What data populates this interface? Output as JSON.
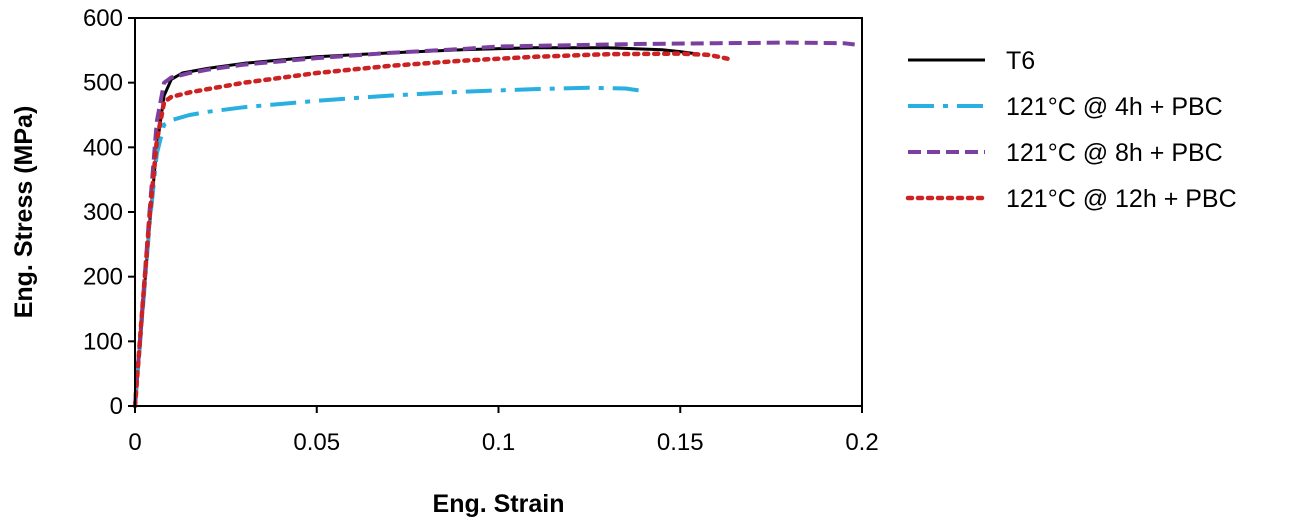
{
  "chart_data": {
    "type": "line",
    "title": "",
    "xlabel": "Eng. Strain",
    "ylabel": "Eng. Stress (MPa)",
    "xlim": [
      0,
      0.2
    ],
    "ylim": [
      0,
      600
    ],
    "x_ticks": [
      0,
      0.05,
      0.1,
      0.15,
      0.2
    ],
    "x_tick_labels": [
      "0",
      "0.05",
      "0.1",
      "0.15",
      "0.2"
    ],
    "y_ticks": [
      0,
      100,
      200,
      300,
      400,
      500,
      600
    ],
    "y_tick_labels": [
      "0",
      "100",
      "200",
      "300",
      "400",
      "500",
      "600"
    ],
    "grid": false,
    "legend_position": "right",
    "series": [
      {
        "name": "T6",
        "color": "#000000",
        "dash": "solid",
        "points": [
          [
            0.0,
            0
          ],
          [
            0.002,
            140
          ],
          [
            0.004,
            280
          ],
          [
            0.006,
            400
          ],
          [
            0.008,
            480
          ],
          [
            0.01,
            505
          ],
          [
            0.013,
            515
          ],
          [
            0.02,
            522
          ],
          [
            0.03,
            530
          ],
          [
            0.05,
            540
          ],
          [
            0.07,
            546
          ],
          [
            0.09,
            551
          ],
          [
            0.11,
            554
          ],
          [
            0.13,
            554
          ],
          [
            0.145,
            551
          ],
          [
            0.15,
            548
          ],
          [
            0.154,
            545
          ]
        ]
      },
      {
        "name": "121°C @ 4h + PBC",
        "color": "#29B0E0",
        "dash": "dashdot",
        "points": [
          [
            0.0,
            0
          ],
          [
            0.002,
            140
          ],
          [
            0.004,
            280
          ],
          [
            0.006,
            390
          ],
          [
            0.008,
            435
          ],
          [
            0.01,
            442
          ],
          [
            0.015,
            450
          ],
          [
            0.02,
            455
          ],
          [
            0.03,
            462
          ],
          [
            0.05,
            472
          ],
          [
            0.07,
            480
          ],
          [
            0.09,
            486
          ],
          [
            0.11,
            490
          ],
          [
            0.125,
            492
          ],
          [
            0.135,
            491
          ],
          [
            0.14,
            487
          ]
        ]
      },
      {
        "name": "121°C @ 8h + PBC",
        "color": "#7B3FA0",
        "dash": "dash",
        "points": [
          [
            0.0,
            0
          ],
          [
            0.002,
            150
          ],
          [
            0.004,
            300
          ],
          [
            0.006,
            440
          ],
          [
            0.008,
            500
          ],
          [
            0.01,
            508
          ],
          [
            0.015,
            515
          ],
          [
            0.02,
            520
          ],
          [
            0.03,
            528
          ],
          [
            0.05,
            538
          ],
          [
            0.07,
            546
          ],
          [
            0.09,
            552
          ],
          [
            0.1,
            556
          ],
          [
            0.12,
            558
          ],
          [
            0.14,
            560
          ],
          [
            0.16,
            561
          ],
          [
            0.18,
            562
          ],
          [
            0.195,
            561
          ],
          [
            0.198,
            559
          ]
        ]
      },
      {
        "name": "121°C @ 12h + PBC",
        "color": "#CC2222",
        "dash": "dot",
        "points": [
          [
            0.0,
            0
          ],
          [
            0.002,
            150
          ],
          [
            0.004,
            290
          ],
          [
            0.006,
            410
          ],
          [
            0.008,
            470
          ],
          [
            0.01,
            478
          ],
          [
            0.015,
            485
          ],
          [
            0.02,
            490
          ],
          [
            0.03,
            500
          ],
          [
            0.05,
            515
          ],
          [
            0.07,
            526
          ],
          [
            0.09,
            534
          ],
          [
            0.11,
            540
          ],
          [
            0.13,
            544
          ],
          [
            0.15,
            545
          ],
          [
            0.158,
            543
          ],
          [
            0.163,
            537
          ]
        ]
      }
    ]
  }
}
